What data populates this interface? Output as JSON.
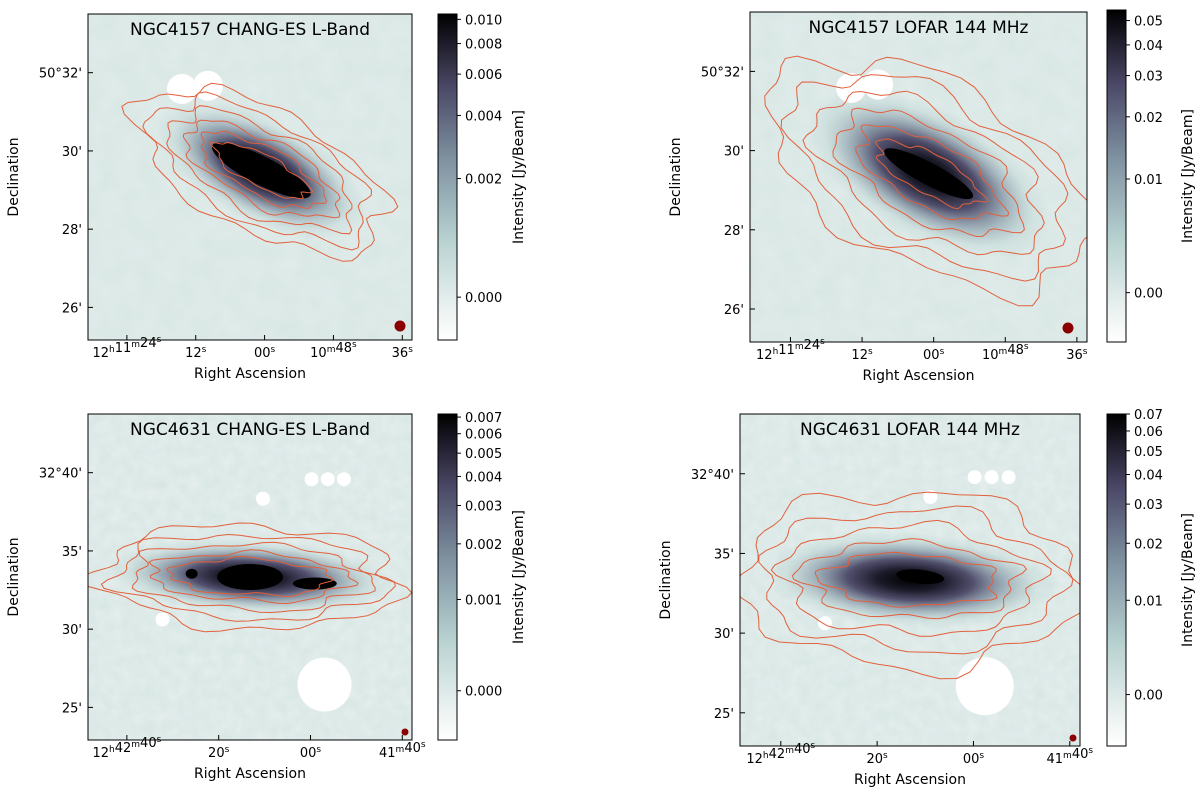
{
  "colors": {
    "map_bg": "#d7e6e4",
    "map_bg_light": "#e6efee",
    "contour": "#e2603c",
    "beam": "#8b0000",
    "cmap_low": "#ffffff",
    "cmap_mid": "#b9d3d1",
    "cmap_mid2": "#7f93a2",
    "cmap_mid3": "#4a4766",
    "cmap_high": "#000000"
  },
  "chart_data": [
    {
      "type": "heatmap",
      "title": "NGC4157 CHANG-ES L-Band",
      "xlabel": "Right Ascension",
      "ylabel": "Declination",
      "colorbar_label": "Intensity [Jy/Beam]",
      "x_ticks": [
        {
          "h": "12",
          "m": "11",
          "s": "24",
          "fmt": "hms"
        },
        {
          "s": "12",
          "fmt": "s"
        },
        {
          "s": "00",
          "fmt": "s"
        },
        {
          "m": "10",
          "s": "48",
          "fmt": "ms"
        },
        {
          "s": "36",
          "fmt": "s"
        }
      ],
      "y_ticks": [
        "50°32'",
        "30'",
        "28'",
        "26'"
      ],
      "colorbar_ticks": [
        "0.010",
        "0.008",
        "0.006",
        "0.004",
        "0.002",
        "0.000"
      ],
      "colorbar_range": [
        -0.0005,
        0.0105
      ],
      "colorbar_stretch": "asinh"
    },
    {
      "type": "heatmap",
      "title": "NGC4157 LOFAR 144 MHz",
      "xlabel": "Right Ascension",
      "ylabel": "Declination",
      "colorbar_label": "Intensity [Jy/Beam]",
      "x_ticks": [
        {
          "h": "12",
          "m": "11",
          "s": "24",
          "fmt": "hms"
        },
        {
          "s": "12",
          "fmt": "s"
        },
        {
          "s": "00",
          "fmt": "s"
        },
        {
          "m": "10",
          "s": "48",
          "fmt": "ms"
        },
        {
          "s": "36",
          "fmt": "s"
        }
      ],
      "y_ticks": [
        "50°32'",
        "30'",
        "28'",
        "26'"
      ],
      "colorbar_ticks": [
        "0.05",
        "0.04",
        "0.03",
        "0.02",
        "0.01",
        "0.00"
      ],
      "colorbar_range": [
        -0.003,
        0.055
      ],
      "colorbar_stretch": "asinh"
    },
    {
      "type": "heatmap",
      "title": "NGC4631 CHANG-ES L-Band",
      "xlabel": "Right Ascension",
      "ylabel": "Declination",
      "colorbar_label": "Intensity [Jy/Beam]",
      "x_ticks": [
        {
          "h": "12",
          "m": "42",
          "s": "40",
          "fmt": "hms"
        },
        {
          "s": "20",
          "fmt": "s"
        },
        {
          "s": "00",
          "fmt": "s"
        },
        {
          "m": "41",
          "s": "40",
          "fmt": "ms"
        }
      ],
      "y_ticks": [
        "32°40'",
        "35'",
        "30'",
        "25'"
      ],
      "colorbar_ticks": [
        "0.007",
        "0.006",
        "0.005",
        "0.004",
        "0.003",
        "0.002",
        "0.001",
        "0.000"
      ],
      "colorbar_range": [
        -0.0004,
        0.0072
      ],
      "colorbar_stretch": "asinh"
    },
    {
      "type": "heatmap",
      "title": "NGC4631 LOFAR 144 MHz",
      "xlabel": "Right Ascension",
      "ylabel": "Declination",
      "colorbar_label": "Intensity [Jy/Beam]",
      "x_ticks": [
        {
          "h": "12",
          "m": "42",
          "s": "40",
          "fmt": "hms"
        },
        {
          "s": "20",
          "fmt": "s"
        },
        {
          "s": "00",
          "fmt": "s"
        },
        {
          "m": "41",
          "s": "40",
          "fmt": "ms"
        }
      ],
      "y_ticks": [
        "32°40'",
        "35'",
        "30'",
        "25'"
      ],
      "colorbar_ticks": [
        "0.07",
        "0.06",
        "0.05",
        "0.04",
        "0.03",
        "0.02",
        "0.01",
        "0.00"
      ],
      "colorbar_range": [
        -0.004,
        0.07
      ],
      "colorbar_stretch": "asinh"
    }
  ]
}
